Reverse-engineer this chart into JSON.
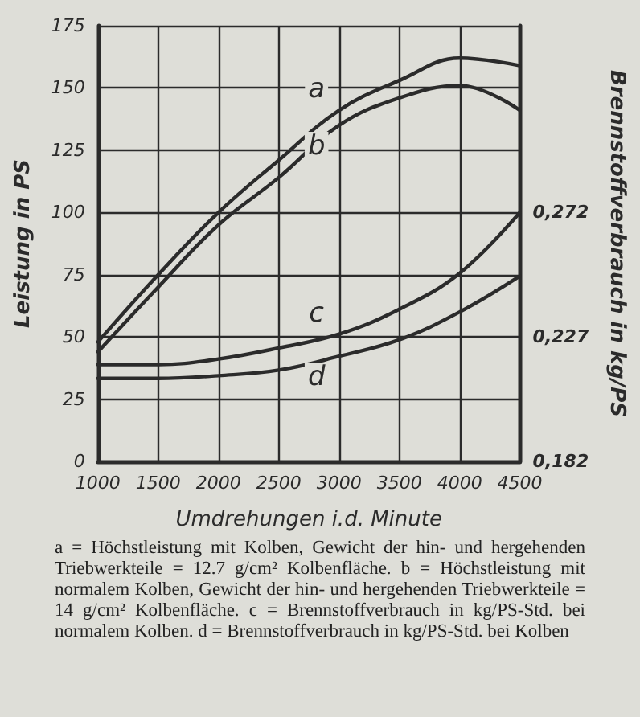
{
  "chart_data": {
    "type": "line",
    "xlabel": "Umdrehungen i.d. Minute",
    "ylabel": "Leistung in PS",
    "y2label": "Brennstoffverbrauch in kg/PS",
    "x": [
      1000,
      1500,
      2000,
      2500,
      3000,
      3500,
      4000,
      4500
    ],
    "series": [
      {
        "name": "a",
        "color": "#2b2b2b",
        "values": [
          48,
          75,
          100,
          121,
          141,
          153,
          162,
          159
        ]
      },
      {
        "name": "b",
        "color": "#2b2b2b",
        "values": [
          44,
          70,
          95,
          114,
          135,
          146,
          151,
          141
        ]
      },
      {
        "name": "c",
        "color": "#2b2b2b",
        "axis": "y2",
        "values": [
          0.217,
          0.217,
          0.219,
          0.223,
          0.228,
          0.237,
          0.25,
          0.272
        ]
      },
      {
        "name": "d",
        "color": "#2b2b2b",
        "axis": "y2",
        "values": [
          0.212,
          0.212,
          0.213,
          0.215,
          0.22,
          0.226,
          0.236,
          0.249
        ]
      }
    ],
    "xlim": [
      1000,
      4500
    ],
    "xticks": [
      1000,
      1500,
      2000,
      2500,
      3000,
      3500,
      4000,
      4500
    ],
    "ylim": [
      0,
      175
    ],
    "yticks": [
      0,
      25,
      50,
      75,
      100,
      125,
      150,
      175
    ],
    "y2lim": [
      0.182,
      0.3395
    ],
    "y2ticks": [
      {
        "value": 0.182,
        "label": "0,182"
      },
      {
        "value": 0.227,
        "label": "0,227"
      },
      {
        "value": 0.272,
        "label": "0,272"
      }
    ],
    "grid": true,
    "marker": "none",
    "line_style": "solid",
    "legend": false,
    "annotations": [
      "a = Höchstleistung mit Kolben, Gewicht der hin- und hergehenden Triebwerkteile = 12.7 g/cm² Kolbenfläche. b = Höchstleistung mit normalem Kolben, Gewicht der hin- und hergehenden Triebwerkteile = 14 g/cm² Kolbenfläche. c = Brennstoffverbrauch in kg/PS-Std. bei normalem Kolben. d = Brennstoffverbrauch in kg/PS-Std. bei Kolben"
    ]
  }
}
